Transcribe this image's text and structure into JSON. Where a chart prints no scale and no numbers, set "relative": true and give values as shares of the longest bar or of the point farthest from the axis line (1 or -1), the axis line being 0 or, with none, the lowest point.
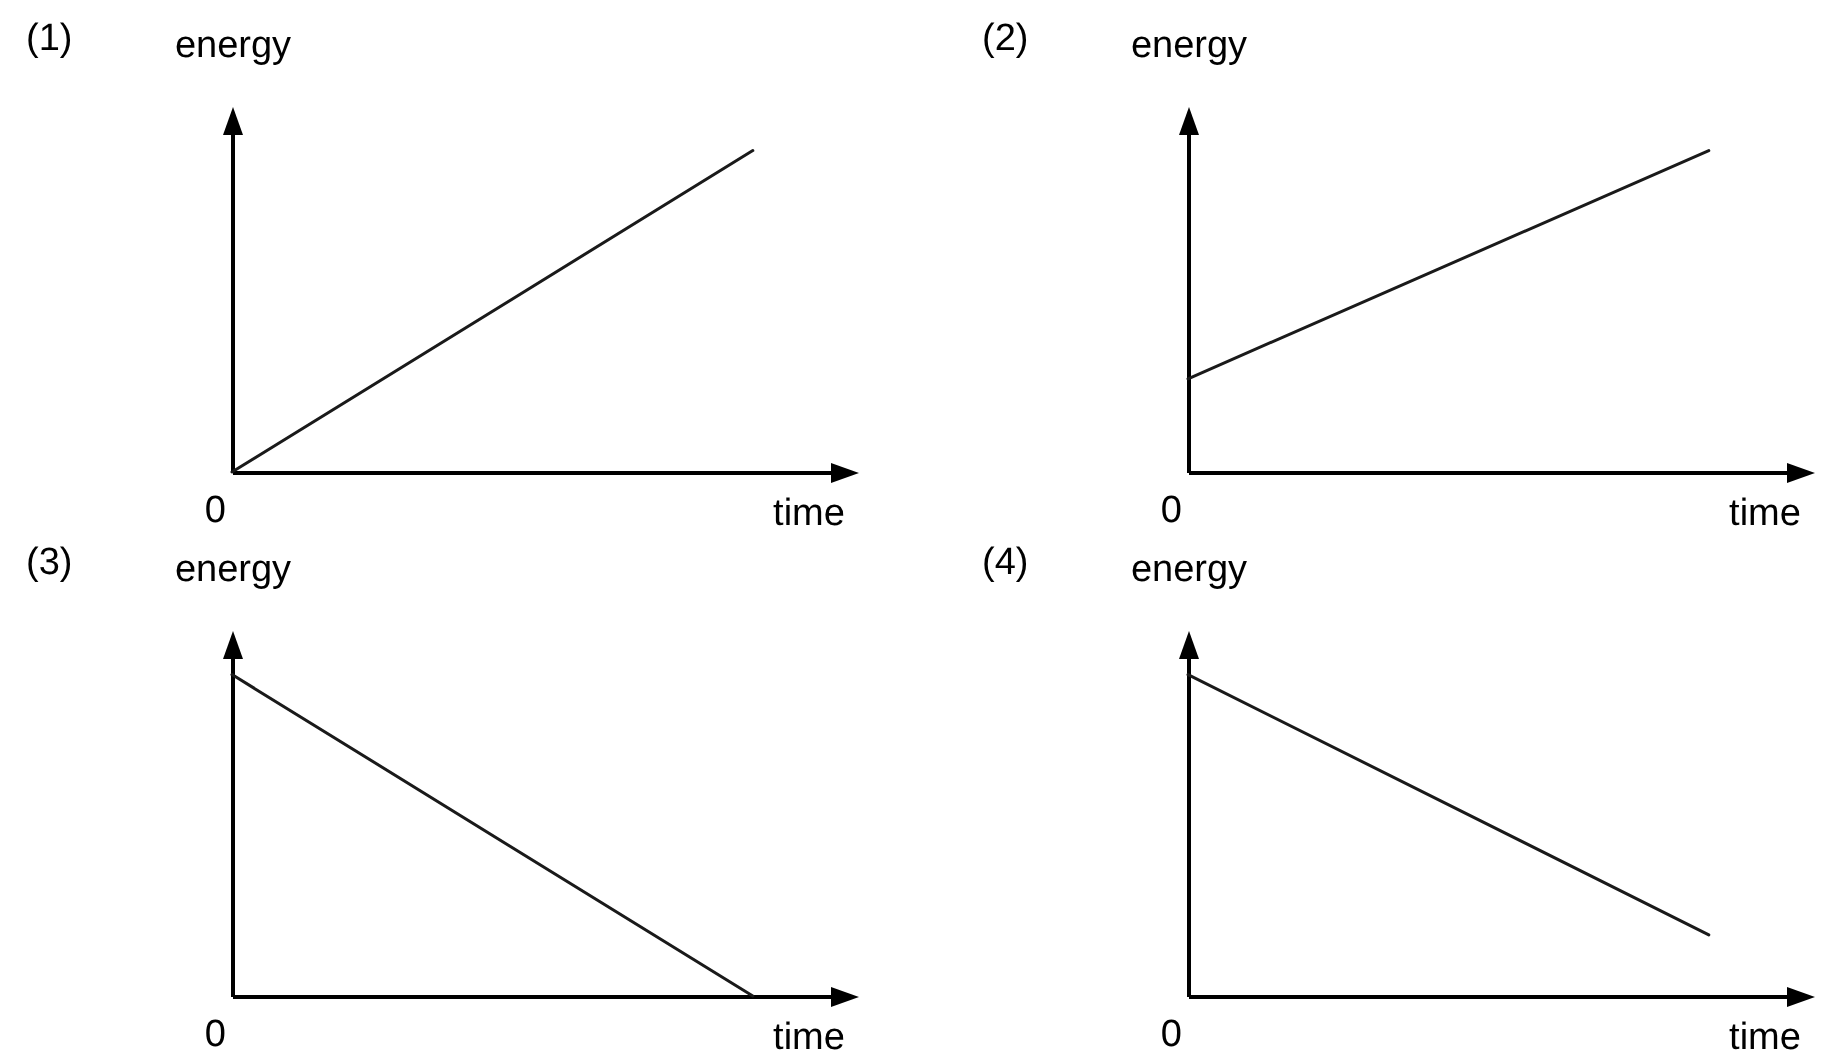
{
  "chart_data": [
    {
      "type": "line",
      "title": "(1)",
      "xlabel": "time",
      "ylabel": "energy",
      "annotations": [
        "0"
      ],
      "categories": [
        null,
        null
      ],
      "relative": true,
      "values": [
        0,
        1
      ],
      "color": "#1a1a1a"
    },
    {
      "type": "line",
      "title": "(2)",
      "xlabel": "time",
      "ylabel": "energy",
      "annotations": [
        "0"
      ],
      "categories": [
        null,
        null
      ],
      "relative": true,
      "values": [
        0.29,
        1
      ],
      "color": "#1a1a1a"
    },
    {
      "type": "line",
      "title": "(3)",
      "xlabel": "time",
      "ylabel": "energy",
      "annotations": [
        "0"
      ],
      "categories": [
        null,
        null
      ],
      "relative": true,
      "values": [
        1,
        0
      ],
      "color": "#1a1a1a"
    },
    {
      "type": "line",
      "title": "(4)",
      "xlabel": "time",
      "ylabel": "energy",
      "annotations": [
        "0"
      ],
      "categories": [
        null,
        null
      ],
      "relative": true,
      "values": [
        1,
        0.19
      ],
      "color": "#1a1a1a"
    }
  ]
}
